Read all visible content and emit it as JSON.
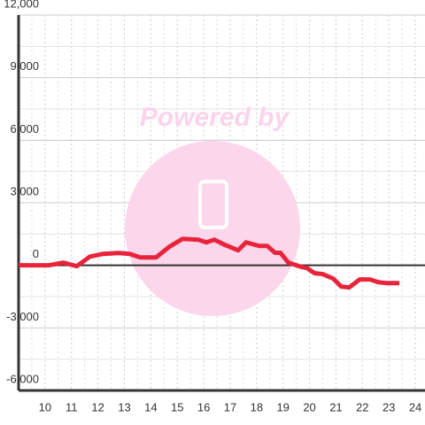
{
  "chart_data": {
    "type": "line",
    "watermark": "Powered by",
    "x": [
      9,
      10.13,
      10.7,
      11.2,
      11.7,
      12.2,
      12.8,
      13.2,
      13.6,
      14.2,
      14.7,
      15.2,
      15.8,
      16.1,
      16.4,
      16.8,
      17.3,
      17.6,
      18.1,
      18.4,
      18.7,
      18.9,
      19.2,
      19.7,
      19.9,
      20.2,
      20.5,
      20.9,
      21.2,
      21.5,
      21.9,
      22.3,
      22.6,
      22.9,
      23.4
    ],
    "series": [
      {
        "color": "#e8243c",
        "values": [
          0,
          0,
          130,
          -40,
          420,
          550,
          590,
          550,
          380,
          380,
          890,
          1270,
          1230,
          1100,
          1230,
          980,
          720,
          1100,
          930,
          930,
          600,
          600,
          130,
          -80,
          -130,
          -380,
          -420,
          -640,
          -1020,
          -1060,
          -680,
          -680,
          -810,
          -850,
          -850
        ]
      }
    ],
    "xlim": [
      9,
      24.4
    ],
    "xticks": [
      10,
      11,
      12,
      13,
      14,
      15,
      16,
      17,
      18,
      19,
      20,
      21,
      22,
      23,
      24
    ],
    "ylim": [
      -6000,
      12000
    ],
    "yticks": [
      {
        "value": -6000,
        "label": "-6,000"
      },
      {
        "value": -3000,
        "label": "-3,000"
      },
      0,
      {
        "value": 3000,
        "label": "3,000"
      },
      {
        "value": 6000,
        "label": "6,000"
      },
      {
        "value": 9000,
        "label": "9,000"
      },
      {
        "value": 12000,
        "label": "12,000"
      }
    ],
    "grid": true
  }
}
